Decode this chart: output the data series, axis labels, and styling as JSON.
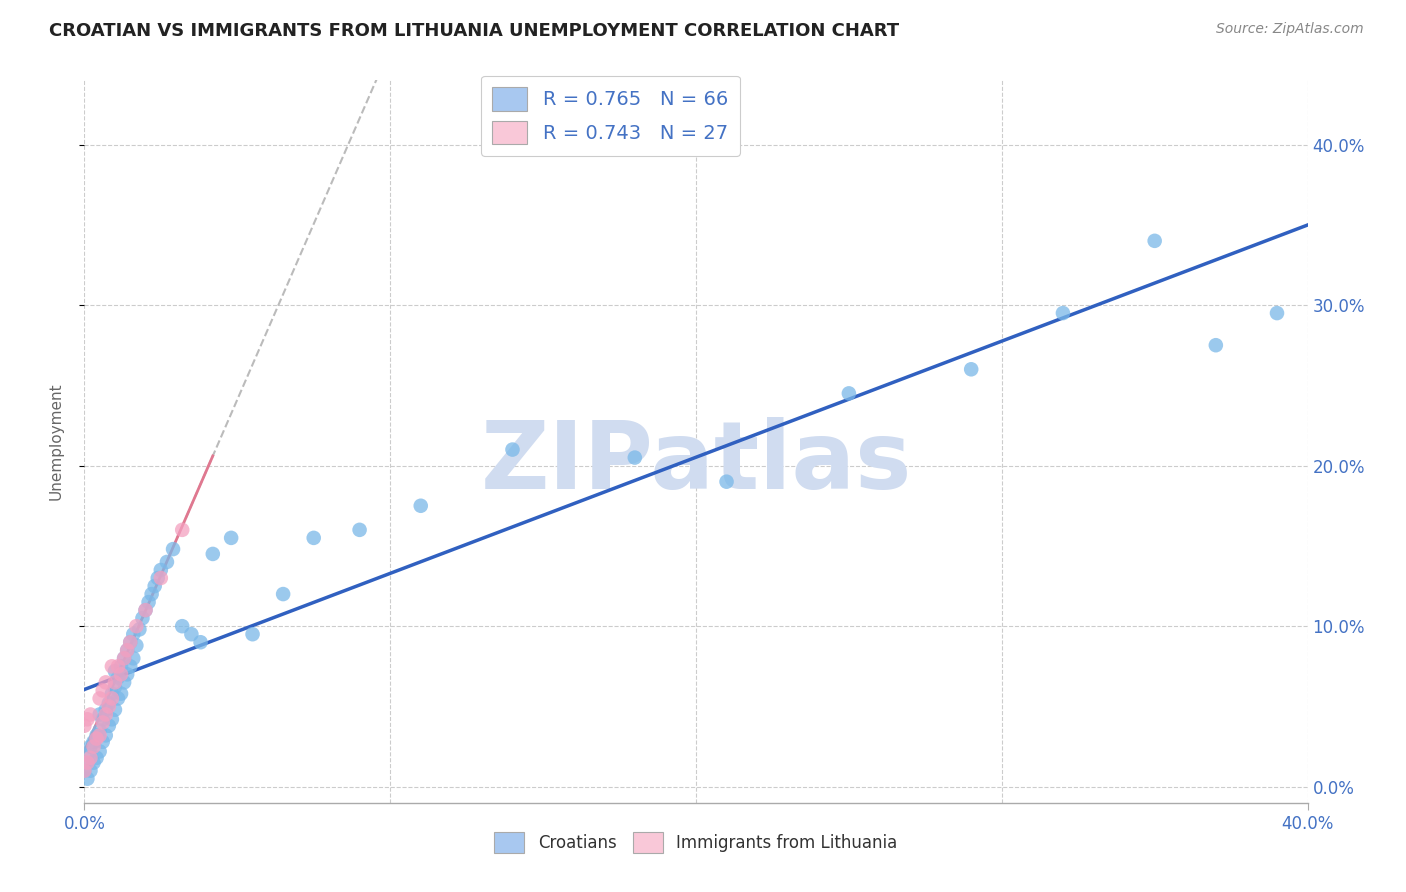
{
  "title": "CROATIAN VS IMMIGRANTS FROM LITHUANIA UNEMPLOYMENT CORRELATION CHART",
  "source": "Source: ZipAtlas.com",
  "ylabel": "Unemployment",
  "y_tick_values": [
    0.0,
    0.1,
    0.2,
    0.3,
    0.4
  ],
  "xlim": [
    0.0,
    0.4
  ],
  "ylim": [
    -0.01,
    0.44
  ],
  "legend_entries": [
    {
      "color": "#a8c8f0",
      "label": "R = 0.765   N = 66"
    },
    {
      "color": "#f9c8d8",
      "label": "R = 0.743   N = 27"
    }
  ],
  "croatian_scatter_color": "#7ab8e8",
  "lithuanian_scatter_color": "#f4a0c0",
  "croatian_line_color": "#3060c0",
  "lithuanian_line_color": "#e09898",
  "watermark": "ZIPatlas",
  "watermark_color": "#d0dcf0",
  "background_color": "#ffffff",
  "grid_color": "#cccccc",
  "croatian_points_x": [
    0.0,
    0.0,
    0.001,
    0.001,
    0.002,
    0.002,
    0.003,
    0.003,
    0.004,
    0.004,
    0.005,
    0.005,
    0.005,
    0.006,
    0.006,
    0.007,
    0.007,
    0.008,
    0.008,
    0.009,
    0.009,
    0.01,
    0.01,
    0.01,
    0.011,
    0.011,
    0.012,
    0.012,
    0.013,
    0.013,
    0.014,
    0.014,
    0.015,
    0.015,
    0.016,
    0.016,
    0.017,
    0.018,
    0.019,
    0.02,
    0.021,
    0.022,
    0.023,
    0.024,
    0.025,
    0.027,
    0.029,
    0.032,
    0.035,
    0.038,
    0.042,
    0.048,
    0.055,
    0.065,
    0.075,
    0.09,
    0.11,
    0.14,
    0.18,
    0.21,
    0.25,
    0.29,
    0.32,
    0.35,
    0.37,
    0.39
  ],
  "croatian_points_y": [
    0.01,
    0.015,
    0.005,
    0.02,
    0.01,
    0.025,
    0.015,
    0.028,
    0.018,
    0.032,
    0.022,
    0.035,
    0.045,
    0.028,
    0.042,
    0.032,
    0.048,
    0.038,
    0.052,
    0.042,
    0.058,
    0.048,
    0.062,
    0.072,
    0.055,
    0.068,
    0.058,
    0.075,
    0.065,
    0.08,
    0.07,
    0.085,
    0.075,
    0.09,
    0.08,
    0.095,
    0.088,
    0.098,
    0.105,
    0.11,
    0.115,
    0.12,
    0.125,
    0.13,
    0.135,
    0.14,
    0.148,
    0.1,
    0.095,
    0.09,
    0.145,
    0.155,
    0.095,
    0.12,
    0.155,
    0.16,
    0.175,
    0.21,
    0.205,
    0.19,
    0.245,
    0.26,
    0.295,
    0.34,
    0.275,
    0.295
  ],
  "lithuanian_points_x": [
    0.0,
    0.0,
    0.001,
    0.001,
    0.002,
    0.002,
    0.003,
    0.004,
    0.005,
    0.005,
    0.006,
    0.006,
    0.007,
    0.007,
    0.008,
    0.009,
    0.009,
    0.01,
    0.011,
    0.012,
    0.013,
    0.014,
    0.015,
    0.017,
    0.02,
    0.025,
    0.032
  ],
  "lithuanian_points_y": [
    0.01,
    0.038,
    0.015,
    0.042,
    0.018,
    0.045,
    0.025,
    0.03,
    0.032,
    0.055,
    0.04,
    0.06,
    0.045,
    0.065,
    0.05,
    0.055,
    0.075,
    0.065,
    0.075,
    0.07,
    0.08,
    0.085,
    0.09,
    0.1,
    0.11,
    0.13,
    0.16
  ]
}
